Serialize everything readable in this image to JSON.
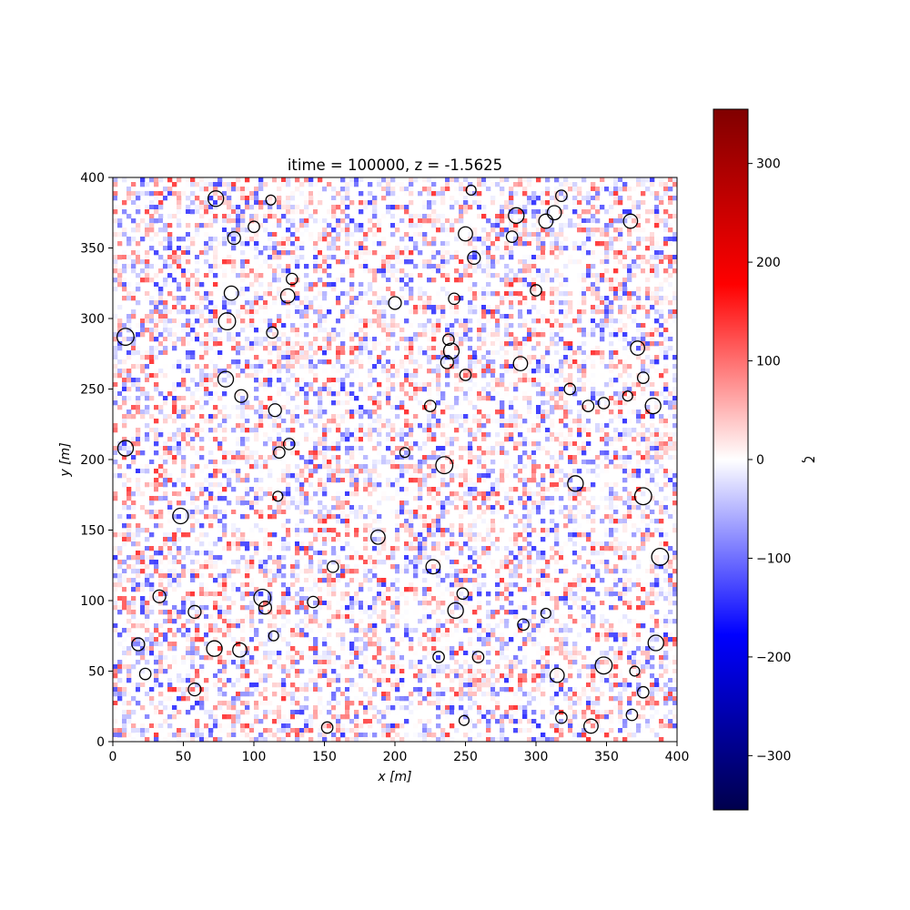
{
  "chart_data": {
    "type": "heatmap",
    "title": "itime = 100000, z = -1.5625",
    "xlabel": "x [m]",
    "ylabel": "y [m]",
    "xlim": [
      0,
      400
    ],
    "ylim": [
      0,
      400
    ],
    "xticks": [
      "0",
      "50",
      "100",
      "150",
      "200",
      "250",
      "300",
      "350",
      "400"
    ],
    "yticks": [
      "0",
      "50",
      "100",
      "150",
      "200",
      "250",
      "300",
      "350",
      "400"
    ],
    "colorbar": {
      "label": "ζ",
      "colormap": "seismic",
      "range": [
        -355,
        355
      ],
      "ticks": [
        "300",
        "200",
        "100",
        "0",
        "−100",
        "−200",
        "−300"
      ],
      "tick_values": [
        300,
        200,
        100,
        0,
        -100,
        -200,
        -300
      ]
    },
    "circles": [
      {
        "x": 73,
        "y": 385,
        "r": 5.5
      },
      {
        "x": 112,
        "y": 384,
        "r": 3.5
      },
      {
        "x": 254,
        "y": 391,
        "r": 3.5
      },
      {
        "x": 318,
        "y": 387,
        "r": 4
      },
      {
        "x": 100,
        "y": 365,
        "r": 4
      },
      {
        "x": 86,
        "y": 357,
        "r": 4.5
      },
      {
        "x": 250,
        "y": 360,
        "r": 5
      },
      {
        "x": 283,
        "y": 358,
        "r": 4
      },
      {
        "x": 286,
        "y": 373,
        "r": 5.5
      },
      {
        "x": 307,
        "y": 369,
        "r": 5
      },
      {
        "x": 313,
        "y": 375,
        "r": 5
      },
      {
        "x": 367,
        "y": 369,
        "r": 5
      },
      {
        "x": 256,
        "y": 343,
        "r": 4.5
      },
      {
        "x": 127,
        "y": 328,
        "r": 4
      },
      {
        "x": 84,
        "y": 318,
        "r": 5
      },
      {
        "x": 124,
        "y": 316,
        "r": 5
      },
      {
        "x": 300,
        "y": 320,
        "r": 4
      },
      {
        "x": 242,
        "y": 314,
        "r": 4
      },
      {
        "x": 200,
        "y": 311,
        "r": 4.5
      },
      {
        "x": 81,
        "y": 298,
        "r": 6
      },
      {
        "x": 9,
        "y": 287,
        "r": 6
      },
      {
        "x": 113,
        "y": 290,
        "r": 4
      },
      {
        "x": 238,
        "y": 285,
        "r": 4
      },
      {
        "x": 240,
        "y": 277,
        "r": 5.5
      },
      {
        "x": 237,
        "y": 269,
        "r": 4.5
      },
      {
        "x": 372,
        "y": 279,
        "r": 5
      },
      {
        "x": 289,
        "y": 268,
        "r": 5
      },
      {
        "x": 250,
        "y": 260,
        "r": 4
      },
      {
        "x": 80,
        "y": 257,
        "r": 5.5
      },
      {
        "x": 376,
        "y": 258,
        "r": 4
      },
      {
        "x": 324,
        "y": 250,
        "r": 4
      },
      {
        "x": 91,
        "y": 245,
        "r": 4.5
      },
      {
        "x": 365,
        "y": 245,
        "r": 3.5
      },
      {
        "x": 337,
        "y": 238,
        "r": 4
      },
      {
        "x": 348,
        "y": 240,
        "r": 4
      },
      {
        "x": 383,
        "y": 238,
        "r": 5.5
      },
      {
        "x": 115,
        "y": 235,
        "r": 4.5
      },
      {
        "x": 225,
        "y": 238,
        "r": 4
      },
      {
        "x": 125,
        "y": 211,
        "r": 4
      },
      {
        "x": 118,
        "y": 205,
        "r": 4
      },
      {
        "x": 207,
        "y": 205,
        "r": 3.5
      },
      {
        "x": 9,
        "y": 208,
        "r": 5.5
      },
      {
        "x": 235,
        "y": 196,
        "r": 6
      },
      {
        "x": 328,
        "y": 183,
        "r": 5.5
      },
      {
        "x": 376,
        "y": 174,
        "r": 6
      },
      {
        "x": 117,
        "y": 174,
        "r": 3.5
      },
      {
        "x": 48,
        "y": 160,
        "r": 5.5
      },
      {
        "x": 188,
        "y": 145,
        "r": 5
      },
      {
        "x": 388,
        "y": 131,
        "r": 6
      },
      {
        "x": 156,
        "y": 124,
        "r": 4
      },
      {
        "x": 227,
        "y": 124,
        "r": 5
      },
      {
        "x": 33,
        "y": 103,
        "r": 4.5
      },
      {
        "x": 106,
        "y": 102,
        "r": 6
      },
      {
        "x": 108,
        "y": 95,
        "r": 4.5
      },
      {
        "x": 142,
        "y": 99,
        "r": 4
      },
      {
        "x": 248,
        "y": 105,
        "r": 4
      },
      {
        "x": 58,
        "y": 92,
        "r": 4.5
      },
      {
        "x": 243,
        "y": 93,
        "r": 5.5
      },
      {
        "x": 307,
        "y": 91,
        "r": 3.5
      },
      {
        "x": 291,
        "y": 83,
        "r": 4
      },
      {
        "x": 114,
        "y": 75,
        "r": 3.5
      },
      {
        "x": 18,
        "y": 69,
        "r": 4.5
      },
      {
        "x": 72,
        "y": 66,
        "r": 5.5
      },
      {
        "x": 90,
        "y": 65,
        "r": 5
      },
      {
        "x": 385,
        "y": 70,
        "r": 5.5
      },
      {
        "x": 231,
        "y": 60,
        "r": 4
      },
      {
        "x": 259,
        "y": 60,
        "r": 4
      },
      {
        "x": 348,
        "y": 54,
        "r": 6
      },
      {
        "x": 370,
        "y": 50,
        "r": 3.5
      },
      {
        "x": 23,
        "y": 48,
        "r": 4
      },
      {
        "x": 315,
        "y": 47,
        "r": 5
      },
      {
        "x": 58,
        "y": 37,
        "r": 4.5
      },
      {
        "x": 376,
        "y": 35,
        "r": 4
      },
      {
        "x": 368,
        "y": 19,
        "r": 4
      },
      {
        "x": 318,
        "y": 17,
        "r": 4
      },
      {
        "x": 249,
        "y": 15,
        "r": 3.5
      },
      {
        "x": 339,
        "y": 11,
        "r": 5
      },
      {
        "x": 152,
        "y": 10,
        "r": 4
      }
    ]
  }
}
